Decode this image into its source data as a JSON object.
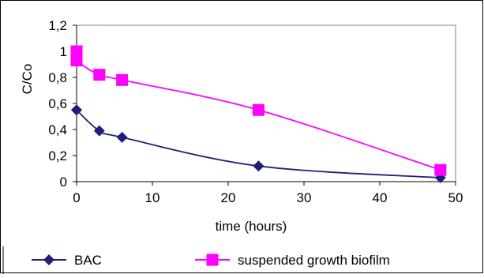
{
  "chart_data": {
    "type": "line",
    "title": "",
    "xlabel": "time (hours)",
    "ylabel": "C/Co",
    "xlim": [
      0,
      50
    ],
    "ylim": [
      0,
      1.2
    ],
    "xticks": [
      0,
      10,
      20,
      30,
      40,
      50
    ],
    "yticks": [
      0,
      0.2,
      0.4,
      0.6,
      0.8,
      1,
      1.2
    ],
    "xtick_labels": [
      "0",
      "10",
      "20",
      "30",
      "40",
      "50"
    ],
    "ytick_labels": [
      "0",
      "0,2",
      "0,4",
      "0,6",
      "0,8",
      "1",
      "1,2"
    ],
    "grid": false,
    "legend_position": "bottom",
    "series": [
      {
        "name": "BAC",
        "color": "#1F1F7A",
        "marker": "diamond",
        "x": [
          0,
          0,
          3,
          6,
          24,
          48
        ],
        "y": [
          0.55,
          0.55,
          0.39,
          0.34,
          0.12,
          0.03
        ]
      },
      {
        "name": "suspended growth biofilm",
        "color": "#FF00FF",
        "marker": "square",
        "x": [
          0,
          0,
          3,
          6,
          24,
          48
        ],
        "y": [
          1.0,
          0.93,
          0.82,
          0.78,
          0.55,
          0.09
        ]
      }
    ]
  }
}
